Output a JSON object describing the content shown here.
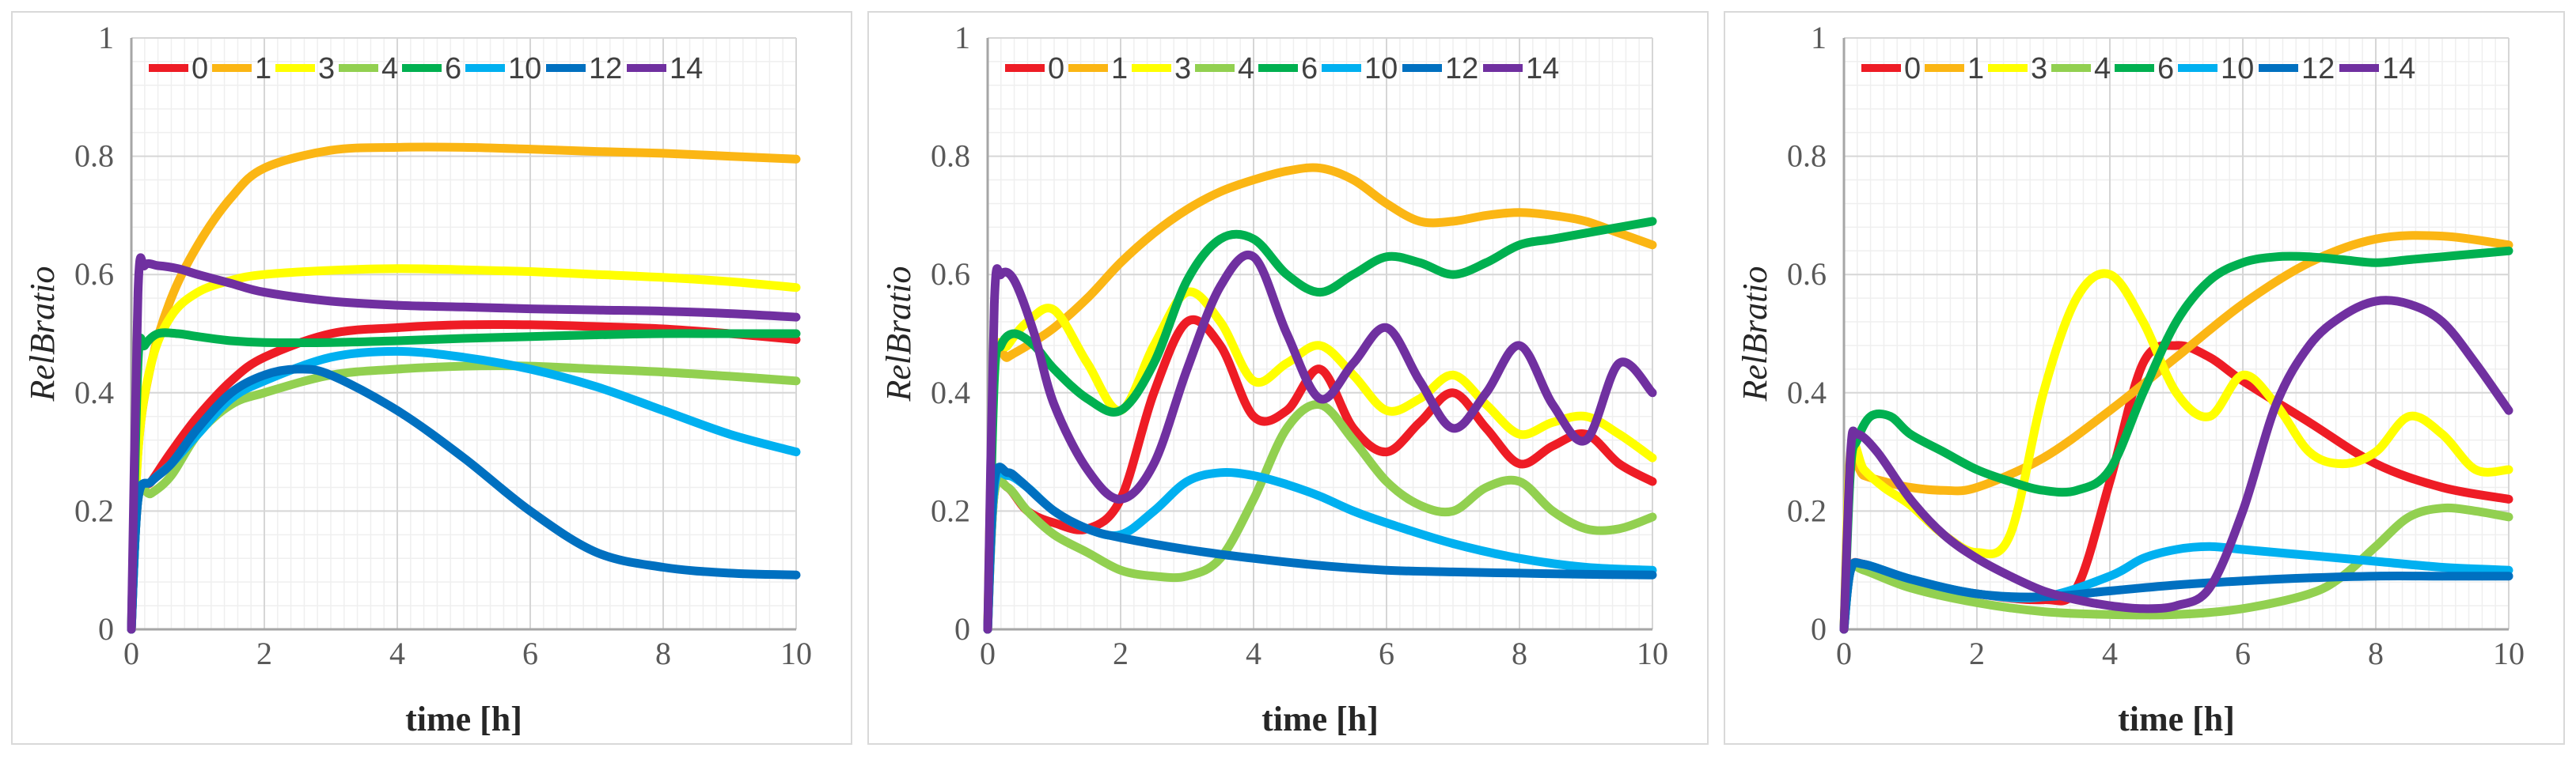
{
  "chart_data": [
    {
      "type": "line",
      "xlabel": "time [h]",
      "ylabel": "RelBratio",
      "xlim": [
        0,
        10
      ],
      "ylim": [
        0,
        1
      ],
      "xticks": [
        0,
        2,
        4,
        6,
        8,
        10
      ],
      "yticks": [
        0,
        0.2,
        0.4,
        0.6,
        0.8,
        1
      ],
      "grid": true,
      "legend": "top",
      "series": [
        {
          "name": "0",
          "color": "#ee1c25",
          "x": [
            0,
            0.1,
            0.3,
            0.6,
            1,
            1.5,
            2,
            3,
            4,
            5,
            6,
            7,
            8,
            9,
            10
          ],
          "y": [
            0,
            0.22,
            0.25,
            0.3,
            0.36,
            0.42,
            0.46,
            0.5,
            0.51,
            0.515,
            0.515,
            0.512,
            0.508,
            0.5,
            0.49
          ]
        },
        {
          "name": "1",
          "color": "#fbb614",
          "x": [
            0,
            0.1,
            0.3,
            0.6,
            1,
            1.5,
            2,
            3,
            4,
            5,
            6,
            7,
            8,
            9,
            10
          ],
          "y": [
            0,
            0.3,
            0.45,
            0.56,
            0.65,
            0.73,
            0.78,
            0.81,
            0.815,
            0.815,
            0.812,
            0.808,
            0.805,
            0.8,
            0.795
          ]
        },
        {
          "name": "3",
          "color": "#ffff00",
          "x": [
            0,
            0.1,
            0.3,
            0.6,
            1,
            1.5,
            2,
            3,
            4,
            5,
            6,
            7,
            8,
            9,
            10
          ],
          "y": [
            0,
            0.3,
            0.45,
            0.53,
            0.57,
            0.59,
            0.6,
            0.607,
            0.61,
            0.608,
            0.605,
            0.6,
            0.595,
            0.588,
            0.578
          ]
        },
        {
          "name": "4",
          "color": "#92d050",
          "x": [
            0,
            0.1,
            0.3,
            0.6,
            1,
            1.5,
            2,
            3,
            4,
            5,
            6,
            7,
            8,
            9,
            10
          ],
          "y": [
            0,
            0.22,
            0.23,
            0.26,
            0.33,
            0.38,
            0.4,
            0.43,
            0.44,
            0.445,
            0.445,
            0.44,
            0.435,
            0.428,
            0.42
          ]
        },
        {
          "name": "6",
          "color": "#00b050",
          "x": [
            0,
            0.1,
            0.2,
            0.4,
            0.7,
            1,
            1.5,
            2,
            3,
            4,
            5,
            6,
            7,
            8,
            9,
            10
          ],
          "y": [
            0,
            0.45,
            0.48,
            0.5,
            0.5,
            0.495,
            0.488,
            0.485,
            0.485,
            0.488,
            0.492,
            0.495,
            0.498,
            0.5,
            0.5,
            0.5
          ]
        },
        {
          "name": "10",
          "color": "#00b0f0",
          "x": [
            0,
            0.1,
            0.3,
            0.6,
            1,
            1.5,
            2,
            3,
            4,
            5,
            6,
            7,
            8,
            9,
            10
          ],
          "y": [
            0,
            0.22,
            0.25,
            0.28,
            0.33,
            0.39,
            0.42,
            0.46,
            0.47,
            0.46,
            0.44,
            0.41,
            0.37,
            0.33,
            0.3
          ]
        },
        {
          "name": "12",
          "color": "#0070c0",
          "x": [
            0,
            0.1,
            0.3,
            0.6,
            1,
            1.5,
            2,
            2.5,
            3,
            4,
            5,
            6,
            7,
            8,
            9,
            10
          ],
          "y": [
            0,
            0.22,
            0.25,
            0.28,
            0.34,
            0.4,
            0.43,
            0.44,
            0.43,
            0.37,
            0.29,
            0.2,
            0.13,
            0.105,
            0.095,
            0.092
          ]
        },
        {
          "name": "14",
          "color": "#7030a0",
          "x": [
            0,
            0.1,
            0.2,
            0.4,
            0.7,
            1,
            1.5,
            2,
            3,
            4,
            5,
            6,
            7,
            8,
            9,
            10
          ],
          "y": [
            0,
            0.57,
            0.615,
            0.615,
            0.61,
            0.6,
            0.585,
            0.57,
            0.555,
            0.548,
            0.545,
            0.542,
            0.54,
            0.538,
            0.534,
            0.528
          ]
        }
      ]
    },
    {
      "type": "line",
      "xlabel": "time [h]",
      "ylabel": "RelBratio",
      "xlim": [
        0,
        10
      ],
      "ylim": [
        0,
        1
      ],
      "xticks": [
        0,
        2,
        4,
        6,
        8,
        10
      ],
      "yticks": [
        0,
        0.2,
        0.4,
        0.6,
        0.8,
        1
      ],
      "grid": true,
      "legend": "top",
      "series": [
        {
          "name": "0",
          "color": "#ee1c25",
          "x": [
            0,
            0.1,
            0.3,
            0.6,
            1,
            1.5,
            2,
            2.5,
            3,
            3.5,
            4,
            4.5,
            5,
            5.5,
            6,
            6.5,
            7,
            7.5,
            8,
            8.5,
            9,
            9.5,
            10
          ],
          "y": [
            0,
            0.23,
            0.24,
            0.2,
            0.18,
            0.17,
            0.22,
            0.4,
            0.52,
            0.48,
            0.36,
            0.37,
            0.44,
            0.34,
            0.3,
            0.35,
            0.4,
            0.34,
            0.28,
            0.31,
            0.33,
            0.28,
            0.25
          ]
        },
        {
          "name": "1",
          "color": "#fbb614",
          "x": [
            0,
            0.1,
            0.3,
            0.6,
            1,
            1.5,
            2,
            2.5,
            3,
            3.5,
            4,
            4.5,
            5,
            5.5,
            6,
            6.5,
            7,
            7.5,
            8,
            8.5,
            9,
            9.5,
            10
          ],
          "y": [
            0,
            0.44,
            0.46,
            0.48,
            0.51,
            0.56,
            0.62,
            0.67,
            0.71,
            0.74,
            0.76,
            0.775,
            0.78,
            0.76,
            0.72,
            0.69,
            0.69,
            0.7,
            0.705,
            0.7,
            0.69,
            0.67,
            0.65
          ]
        },
        {
          "name": "3",
          "color": "#ffff00",
          "x": [
            0,
            0.1,
            0.3,
            0.6,
            1,
            1.5,
            2,
            2.5,
            3,
            3.5,
            4,
            4.5,
            5,
            5.5,
            6,
            6.5,
            7,
            7.5,
            8,
            8.5,
            9,
            9.5,
            10
          ],
          "y": [
            0,
            0.44,
            0.48,
            0.52,
            0.54,
            0.45,
            0.37,
            0.48,
            0.57,
            0.52,
            0.42,
            0.45,
            0.48,
            0.43,
            0.37,
            0.39,
            0.43,
            0.38,
            0.33,
            0.35,
            0.36,
            0.33,
            0.29
          ]
        },
        {
          "name": "4",
          "color": "#92d050",
          "x": [
            0,
            0.1,
            0.3,
            0.6,
            1,
            1.5,
            2,
            2.5,
            3,
            3.5,
            4,
            4.5,
            5,
            5.5,
            6,
            6.5,
            7,
            7.5,
            8,
            8.5,
            9,
            9.5,
            10
          ],
          "y": [
            0,
            0.23,
            0.24,
            0.2,
            0.16,
            0.13,
            0.1,
            0.09,
            0.09,
            0.12,
            0.22,
            0.34,
            0.38,
            0.32,
            0.25,
            0.21,
            0.2,
            0.24,
            0.25,
            0.2,
            0.17,
            0.17,
            0.19
          ]
        },
        {
          "name": "6",
          "color": "#00b050",
          "x": [
            0,
            0.1,
            0.2,
            0.4,
            0.7,
            1,
            1.5,
            2,
            2.5,
            3,
            3.5,
            4,
            4.5,
            5,
            5.5,
            6,
            6.5,
            7,
            7.5,
            8,
            8.5,
            9,
            9.5,
            10
          ],
          "y": [
            0,
            0.42,
            0.48,
            0.5,
            0.48,
            0.44,
            0.39,
            0.37,
            0.45,
            0.59,
            0.66,
            0.66,
            0.6,
            0.57,
            0.6,
            0.63,
            0.62,
            0.6,
            0.62,
            0.65,
            0.66,
            0.67,
            0.68,
            0.69
          ]
        },
        {
          "name": "10",
          "color": "#00b0f0",
          "x": [
            0,
            0.1,
            0.3,
            0.6,
            1,
            1.5,
            2,
            2.5,
            3,
            3.5,
            4,
            4.5,
            5,
            5.5,
            6,
            7,
            8,
            9,
            10
          ],
          "y": [
            0,
            0.24,
            0.26,
            0.24,
            0.2,
            0.17,
            0.16,
            0.2,
            0.25,
            0.265,
            0.26,
            0.245,
            0.225,
            0.2,
            0.18,
            0.145,
            0.12,
            0.105,
            0.1
          ]
        },
        {
          "name": "12",
          "color": "#0070c0",
          "x": [
            0,
            0.1,
            0.3,
            0.5,
            1,
            1.5,
            2,
            3,
            4,
            5,
            6,
            7,
            8,
            9,
            10
          ],
          "y": [
            0,
            0.25,
            0.265,
            0.25,
            0.2,
            0.17,
            0.155,
            0.135,
            0.12,
            0.108,
            0.1,
            0.097,
            0.095,
            0.093,
            0.092
          ]
        },
        {
          "name": "14",
          "color": "#7030a0",
          "x": [
            0,
            0.1,
            0.2,
            0.4,
            0.7,
            1,
            1.5,
            2,
            2.5,
            3,
            3.5,
            4,
            4.5,
            5,
            5.5,
            6,
            6.5,
            7,
            7.5,
            8,
            8.5,
            9,
            9.5,
            10
          ],
          "y": [
            0,
            0.55,
            0.6,
            0.59,
            0.5,
            0.38,
            0.27,
            0.22,
            0.28,
            0.44,
            0.58,
            0.63,
            0.5,
            0.39,
            0.45,
            0.51,
            0.42,
            0.34,
            0.4,
            0.48,
            0.38,
            0.32,
            0.45,
            0.4
          ]
        }
      ]
    },
    {
      "type": "line",
      "xlabel": "time [h]",
      "ylabel": "RelBratio",
      "xlim": [
        0,
        10
      ],
      "ylim": [
        0,
        1
      ],
      "xticks": [
        0,
        2,
        4,
        6,
        8,
        10
      ],
      "yticks": [
        0,
        0.2,
        0.4,
        0.6,
        0.8,
        1
      ],
      "grid": true,
      "legend": "top",
      "series": [
        {
          "name": "0",
          "color": "#ee1c25",
          "x": [
            0,
            0.1,
            0.3,
            1,
            2,
            3,
            3.5,
            4,
            4.5,
            5,
            5.5,
            6,
            7,
            8,
            9,
            10
          ],
          "y": [
            0,
            0.1,
            0.11,
            0.08,
            0.06,
            0.05,
            0.07,
            0.25,
            0.45,
            0.48,
            0.46,
            0.42,
            0.35,
            0.28,
            0.24,
            0.22
          ]
        },
        {
          "name": "1",
          "color": "#fbb614",
          "x": [
            0,
            0.1,
            0.3,
            0.6,
            1,
            1.5,
            2,
            3,
            4,
            5,
            6,
            7,
            8,
            9,
            10
          ],
          "y": [
            0,
            0.27,
            0.26,
            0.25,
            0.24,
            0.235,
            0.24,
            0.29,
            0.37,
            0.46,
            0.55,
            0.62,
            0.66,
            0.665,
            0.65
          ]
        },
        {
          "name": "3",
          "color": "#ffff00",
          "x": [
            0,
            0.1,
            0.3,
            0.6,
            1,
            1.5,
            2,
            2.5,
            3,
            3.5,
            4,
            4.5,
            5,
            5.5,
            6,
            6.5,
            7,
            7.5,
            8,
            8.5,
            9,
            9.5,
            10
          ],
          "y": [
            0,
            0.3,
            0.27,
            0.24,
            0.21,
            0.16,
            0.13,
            0.16,
            0.4,
            0.56,
            0.6,
            0.52,
            0.4,
            0.36,
            0.43,
            0.38,
            0.3,
            0.28,
            0.3,
            0.36,
            0.33,
            0.27,
            0.27
          ]
        },
        {
          "name": "4",
          "color": "#92d050",
          "x": [
            0,
            0.1,
            0.3,
            1,
            2,
            3,
            4,
            5,
            6,
            7,
            7.5,
            8,
            8.5,
            9,
            9.5,
            10
          ],
          "y": [
            0,
            0.1,
            0.1,
            0.07,
            0.045,
            0.03,
            0.025,
            0.025,
            0.035,
            0.06,
            0.09,
            0.14,
            0.19,
            0.205,
            0.2,
            0.19
          ]
        },
        {
          "name": "6",
          "color": "#00b050",
          "x": [
            0,
            0.1,
            0.2,
            0.4,
            0.7,
            1,
            1.5,
            2,
            2.5,
            3,
            3.5,
            4,
            4.5,
            5,
            5.5,
            6,
            6.5,
            7,
            7.5,
            8,
            8.5,
            9,
            9.5,
            10
          ],
          "y": [
            0,
            0.27,
            0.32,
            0.36,
            0.36,
            0.33,
            0.3,
            0.27,
            0.25,
            0.235,
            0.235,
            0.27,
            0.4,
            0.52,
            0.59,
            0.62,
            0.63,
            0.63,
            0.625,
            0.62,
            0.625,
            0.63,
            0.635,
            0.64
          ]
        },
        {
          "name": "10",
          "color": "#00b0f0",
          "x": [
            0,
            0.1,
            0.3,
            1,
            2,
            3,
            4,
            4.5,
            5,
            5.5,
            6,
            7,
            8,
            9,
            10
          ],
          "y": [
            0,
            0.1,
            0.11,
            0.085,
            0.06,
            0.055,
            0.09,
            0.12,
            0.135,
            0.14,
            0.135,
            0.125,
            0.115,
            0.105,
            0.1
          ]
        },
        {
          "name": "12",
          "color": "#0070c0",
          "x": [
            0,
            0.1,
            0.3,
            1,
            2,
            3,
            4,
            5,
            6,
            7,
            8,
            9,
            10
          ],
          "y": [
            0,
            0.1,
            0.11,
            0.085,
            0.06,
            0.055,
            0.065,
            0.075,
            0.082,
            0.087,
            0.09,
            0.09,
            0.09
          ]
        },
        {
          "name": "14",
          "color": "#7030a0",
          "x": [
            0,
            0.1,
            0.2,
            0.5,
            1,
            1.5,
            2,
            2.5,
            3,
            3.5,
            4,
            4.5,
            5,
            5.5,
            6,
            6.5,
            7,
            7.5,
            8,
            8.5,
            9,
            9.5,
            10
          ],
          "y": [
            0,
            0.3,
            0.33,
            0.3,
            0.22,
            0.16,
            0.12,
            0.09,
            0.065,
            0.05,
            0.04,
            0.035,
            0.04,
            0.07,
            0.2,
            0.38,
            0.48,
            0.53,
            0.555,
            0.55,
            0.52,
            0.45,
            0.37
          ]
        }
      ]
    }
  ]
}
